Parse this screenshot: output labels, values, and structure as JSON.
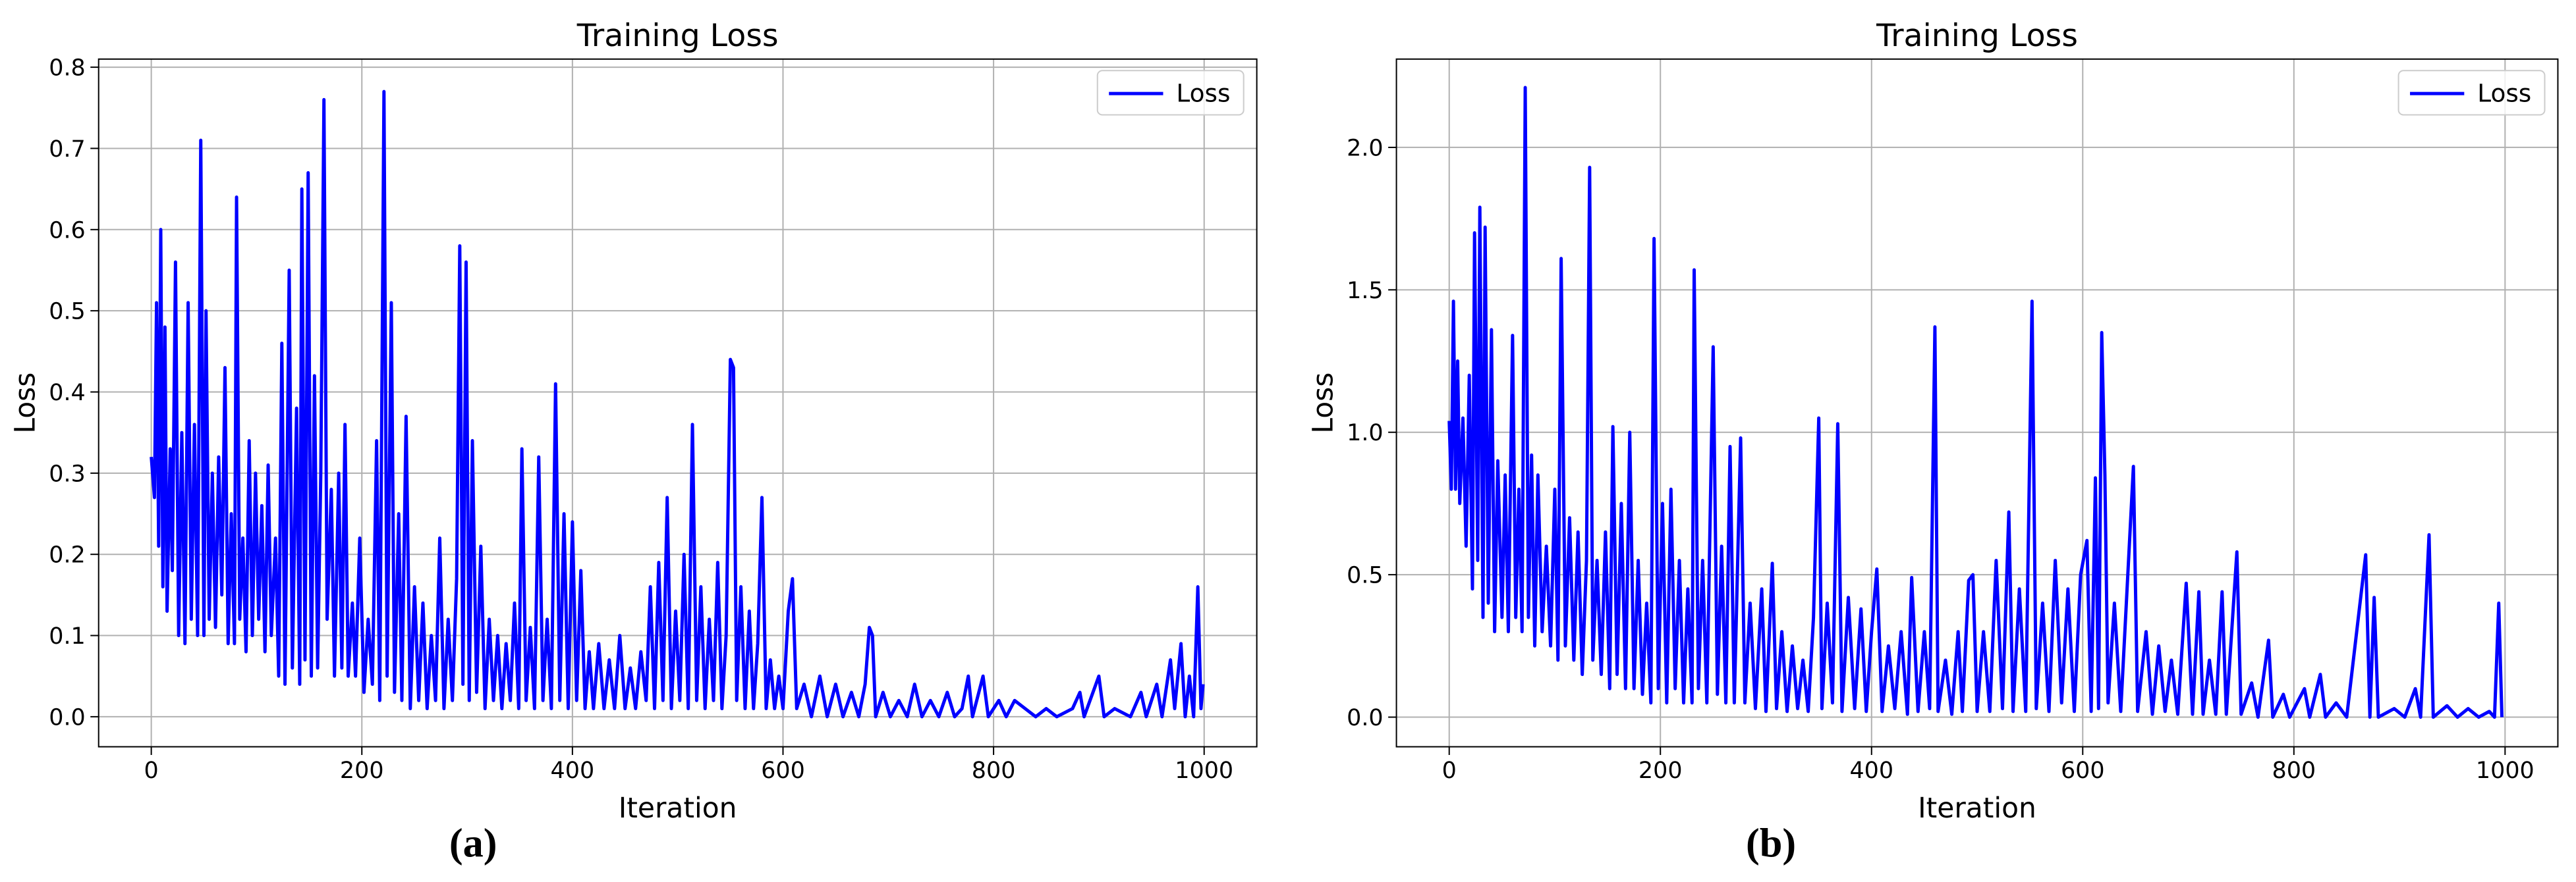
{
  "chart_data": [
    {
      "type": "line",
      "title": "Training Loss",
      "x_label": "Iteration",
      "y_label": "Loss",
      "caption": "(a)",
      "xlim": [
        -50,
        1050
      ],
      "ylim": [
        -0.037,
        0.81
      ],
      "xticks": [
        0,
        200,
        400,
        600,
        800,
        1000
      ],
      "yticks": [
        {
          "value": 0,
          "label": "0.0"
        },
        0.1,
        0.2,
        0.3,
        0.4,
        0.5,
        0.6,
        0.7,
        0.8
      ],
      "grid": true,
      "legend": "upper right",
      "x": [
        0,
        3,
        5,
        7,
        9,
        11,
        13,
        15,
        18,
        20,
        23,
        26,
        29,
        32,
        35,
        38,
        41,
        44,
        47,
        50,
        52,
        55,
        58,
        61,
        64,
        67,
        70,
        73,
        76,
        79,
        81,
        84,
        87,
        90,
        93,
        96,
        99,
        102,
        105,
        108,
        111,
        114,
        118,
        121,
        124,
        127,
        131,
        134,
        138,
        141,
        143,
        146,
        149,
        152,
        155,
        158,
        161,
        164,
        167,
        171,
        174,
        178,
        181,
        184,
        187,
        191,
        194,
        198,
        202,
        206,
        210,
        214,
        217,
        221,
        224,
        228,
        231,
        235,
        238,
        242,
        246,
        250,
        254,
        258,
        262,
        266,
        270,
        274,
        278,
        282,
        286,
        290,
        293,
        296,
        299,
        302,
        305,
        309,
        313,
        317,
        321,
        325,
        329,
        333,
        337,
        341,
        345,
        349,
        352,
        356,
        360,
        364,
        368,
        372,
        376,
        380,
        384,
        388,
        392,
        396,
        400,
        404,
        408,
        412,
        416,
        420,
        425,
        430,
        435,
        440,
        445,
        450,
        455,
        460,
        465,
        470,
        474,
        478,
        482,
        486,
        490,
        494,
        498,
        502,
        506,
        510,
        514,
        518,
        522,
        526,
        530,
        534,
        538,
        542,
        546,
        550,
        553,
        556,
        560,
        564,
        568,
        572,
        576,
        580,
        584,
        588,
        592,
        596,
        600,
        605,
        609,
        613,
        620,
        627,
        635,
        642,
        650,
        657,
        665,
        672,
        678,
        682,
        685,
        688,
        695,
        702,
        710,
        718,
        725,
        732,
        740,
        748,
        756,
        763,
        770,
        776,
        780,
        790,
        795,
        805,
        812,
        820,
        830,
        840,
        850,
        860,
        875,
        882,
        886,
        900,
        905,
        915,
        930,
        940,
        945,
        955,
        960,
        968,
        972,
        978,
        982,
        986,
        990,
        994,
        997,
        999
      ],
      "series": [
        {
          "name": "Loss",
          "color": "#0000ff",
          "values": [
            0.32,
            0.27,
            0.51,
            0.21,
            0.6,
            0.16,
            0.48,
            0.13,
            0.33,
            0.18,
            0.56,
            0.1,
            0.35,
            0.09,
            0.51,
            0.12,
            0.36,
            0.1,
            0.71,
            0.1,
            0.5,
            0.12,
            0.3,
            0.11,
            0.32,
            0.15,
            0.43,
            0.09,
            0.25,
            0.09,
            0.64,
            0.12,
            0.22,
            0.08,
            0.34,
            0.1,
            0.3,
            0.12,
            0.26,
            0.08,
            0.31,
            0.1,
            0.22,
            0.05,
            0.46,
            0.04,
            0.55,
            0.06,
            0.38,
            0.04,
            0.65,
            0.07,
            0.67,
            0.05,
            0.42,
            0.06,
            0.3,
            0.76,
            0.12,
            0.28,
            0.05,
            0.3,
            0.06,
            0.36,
            0.05,
            0.14,
            0.05,
            0.22,
            0.03,
            0.12,
            0.04,
            0.34,
            0.02,
            0.77,
            0.05,
            0.51,
            0.03,
            0.25,
            0.02,
            0.37,
            0.01,
            0.16,
            0.02,
            0.14,
            0.01,
            0.1,
            0.02,
            0.22,
            0.01,
            0.12,
            0.02,
            0.17,
            0.58,
            0.04,
            0.56,
            0.02,
            0.34,
            0.03,
            0.21,
            0.01,
            0.12,
            0.02,
            0.1,
            0.01,
            0.09,
            0.02,
            0.14,
            0.01,
            0.33,
            0.02,
            0.11,
            0.01,
            0.32,
            0.02,
            0.12,
            0.01,
            0.41,
            0.02,
            0.25,
            0.01,
            0.24,
            0.02,
            0.18,
            0.01,
            0.08,
            0.01,
            0.09,
            0.01,
            0.07,
            0.01,
            0.1,
            0.01,
            0.06,
            0.01,
            0.08,
            0.02,
            0.16,
            0.01,
            0.19,
            0.02,
            0.27,
            0.01,
            0.13,
            0.02,
            0.2,
            0.01,
            0.36,
            0.02,
            0.16,
            0.01,
            0.12,
            0.02,
            0.19,
            0.01,
            0.1,
            0.44,
            0.43,
            0.02,
            0.16,
            0.01,
            0.13,
            0.01,
            0.09,
            0.27,
            0.01,
            0.07,
            0.01,
            0.05,
            0.01,
            0.13,
            0.17,
            0.01,
            0.04,
            0,
            0.05,
            0,
            0.04,
            0,
            0.03,
            0,
            0.04,
            0.11,
            0.1,
            0,
            0.03,
            0,
            0.02,
            0,
            0.04,
            0,
            0.02,
            0,
            0.03,
            0,
            0.01,
            0.05,
            0,
            0.05,
            0,
            0.02,
            0,
            0.02,
            0.01,
            0,
            0.01,
            0,
            0.01,
            0.03,
            0,
            0.05,
            0,
            0.01,
            0,
            0.03,
            0,
            0.04,
            0,
            0.07,
            0.01,
            0.09,
            0,
            0.05,
            0,
            0.16,
            0.01,
            0.04
          ]
        }
      ]
    },
    {
      "type": "line",
      "title": "Training Loss",
      "x_label": "Iteration",
      "y_label": "Loss",
      "caption": "(b)",
      "xlim": [
        -50,
        1050
      ],
      "ylim": [
        -0.104,
        2.31
      ],
      "xticks": [
        0,
        200,
        400,
        600,
        800,
        1000
      ],
      "yticks": [
        {
          "value": 0,
          "label": "0.0"
        },
        0.5,
        {
          "value": 1,
          "label": "1.0"
        },
        1.5,
        {
          "value": 2,
          "label": "2.0"
        }
      ],
      "grid": true,
      "legend": "upper right",
      "x": [
        0,
        2,
        4,
        6,
        8,
        10,
        13,
        16,
        19,
        22,
        24,
        27,
        29,
        32,
        34,
        37,
        40,
        43,
        46,
        50,
        53,
        56,
        60,
        63,
        66,
        69,
        72,
        75,
        78,
        81,
        84,
        88,
        92,
        96,
        100,
        103,
        106,
        110,
        114,
        118,
        122,
        126,
        130,
        133,
        136,
        140,
        144,
        148,
        152,
        155,
        159,
        163,
        167,
        171,
        175,
        179,
        183,
        187,
        191,
        194,
        198,
        202,
        206,
        210,
        214,
        218,
        222,
        226,
        230,
        232,
        236,
        240,
        244,
        250,
        254,
        258,
        262,
        266,
        270,
        276,
        280,
        285,
        290,
        296,
        300,
        306,
        310,
        315,
        320,
        325,
        330,
        335,
        340,
        345,
        350,
        353,
        358,
        363,
        368,
        372,
        378,
        384,
        390,
        395,
        400,
        405,
        410,
        416,
        422,
        428,
        434,
        438,
        444,
        450,
        455,
        460,
        463,
        470,
        476,
        482,
        486,
        492,
        496,
        500,
        506,
        512,
        518,
        524,
        530,
        534,
        540,
        546,
        552,
        556,
        562,
        568,
        574,
        580,
        586,
        592,
        598,
        604,
        608,
        612,
        615,
        618,
        621,
        624,
        630,
        636,
        642,
        648,
        652,
        660,
        666,
        672,
        678,
        684,
        690,
        698,
        704,
        710,
        714,
        720,
        726,
        732,
        736,
        746,
        750,
        760,
        766,
        776,
        780,
        790,
        796,
        810,
        815,
        825,
        830,
        840,
        850,
        868,
        872,
        876,
        880,
        895,
        905,
        915,
        920,
        928,
        932,
        945,
        955,
        965,
        975,
        985,
        990,
        994,
        997
      ],
      "series": [
        {
          "name": "Loss",
          "color": "#0000ff",
          "values": [
            1.04,
            0.8,
            1.46,
            0.8,
            1.25,
            0.75,
            1.05,
            0.6,
            1.2,
            0.45,
            1.7,
            0.55,
            1.79,
            0.35,
            1.72,
            0.4,
            1.36,
            0.3,
            0.9,
            0.35,
            0.85,
            0.3,
            1.34,
            0.35,
            0.8,
            0.3,
            2.21,
            0.35,
            0.92,
            0.25,
            0.85,
            0.3,
            0.6,
            0.25,
            0.8,
            0.2,
            1.61,
            0.25,
            0.7,
            0.2,
            0.65,
            0.15,
            0.55,
            1.93,
            0.2,
            0.55,
            0.15,
            0.65,
            0.1,
            1.02,
            0.15,
            0.75,
            0.1,
            1,
            0.1,
            0.55,
            0.08,
            0.4,
            0.05,
            1.68,
            0.1,
            0.75,
            0.05,
            0.8,
            0.1,
            0.55,
            0.05,
            0.45,
            0.05,
            1.57,
            0.1,
            0.55,
            0.05,
            1.3,
            0.08,
            0.6,
            0.05,
            0.95,
            0.05,
            0.98,
            0.05,
            0.4,
            0.03,
            0.45,
            0.02,
            0.54,
            0.03,
            0.3,
            0.02,
            0.25,
            0.03,
            0.2,
            0.02,
            0.35,
            1.05,
            0.03,
            0.4,
            0.05,
            1.03,
            0.02,
            0.42,
            0.03,
            0.38,
            0.02,
            0.3,
            0.52,
            0.02,
            0.25,
            0.03,
            0.3,
            0.01,
            0.49,
            0.02,
            0.3,
            0.03,
            1.37,
            0.02,
            0.2,
            0.01,
            0.3,
            0.02,
            0.48,
            0.5,
            0.02,
            0.3,
            0.02,
            0.55,
            0.03,
            0.72,
            0.02,
            0.45,
            0.02,
            1.46,
            0.03,
            0.4,
            0.02,
            0.55,
            0.05,
            0.45,
            0.02,
            0.5,
            0.62,
            0.02,
            0.84,
            0.03,
            1.35,
            0.85,
            0.05,
            0.4,
            0.02,
            0.45,
            0.88,
            0.02,
            0.3,
            0.01,
            0.25,
            0.02,
            0.2,
            0.01,
            0.47,
            0.01,
            0.44,
            0.01,
            0.2,
            0.01,
            0.44,
            0.01,
            0.58,
            0.01,
            0.12,
            0,
            0.27,
            0,
            0.08,
            0,
            0.1,
            0,
            0.15,
            0,
            0.05,
            0,
            0.57,
            0,
            0.42,
            0,
            0.03,
            0,
            0.1,
            0,
            0.64,
            0,
            0.04,
            0,
            0.03,
            0,
            0.02,
            0,
            0.4,
            0
          ]
        }
      ]
    }
  ]
}
